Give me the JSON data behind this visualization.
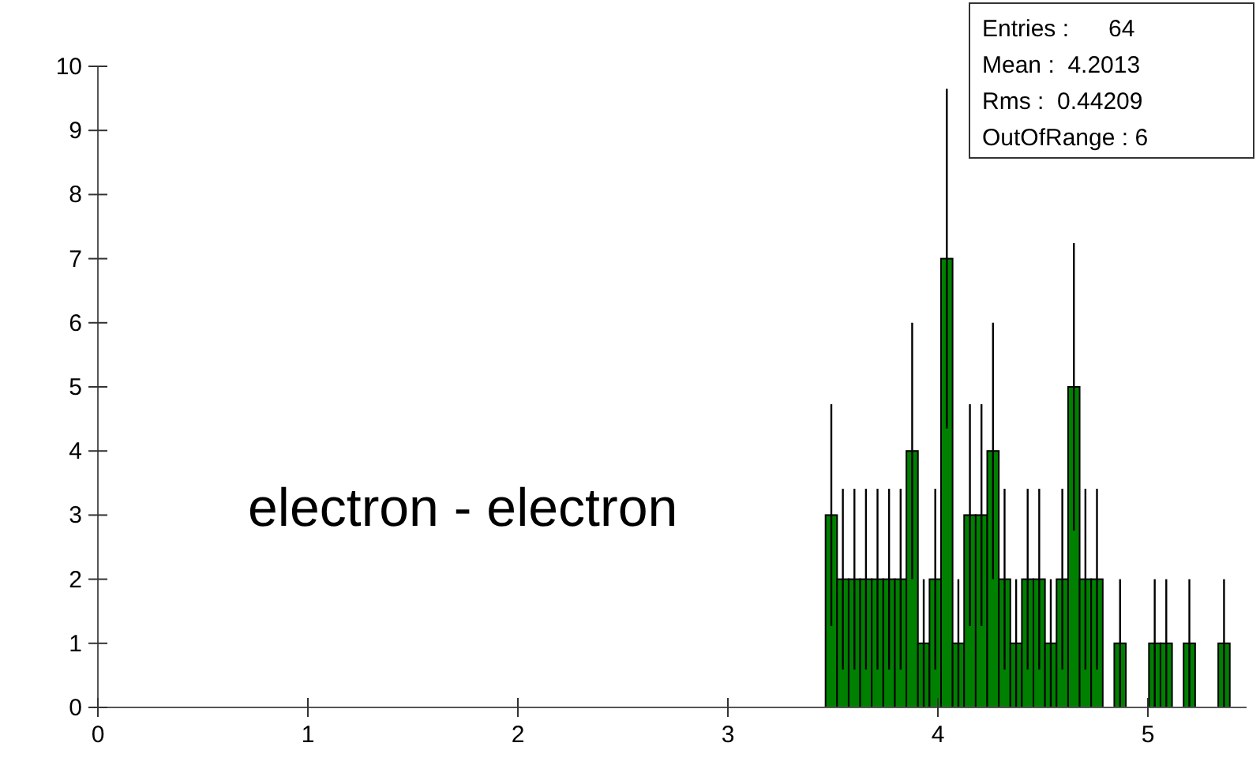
{
  "chart_data": {
    "type": "histogram",
    "title": "electron - electron",
    "bins": [
      3.465,
      3.52,
      3.575,
      3.63,
      3.685,
      3.74,
      3.795,
      3.85,
      3.905,
      3.96,
      4.015,
      4.07,
      4.125,
      4.18,
      4.235,
      4.29,
      4.345,
      4.4,
      4.455,
      4.51,
      4.565,
      4.62,
      4.675,
      4.73,
      4.785,
      4.84,
      4.895,
      4.95,
      5.005,
      5.06,
      5.115,
      5.17,
      5.225,
      5.28,
      5.335,
      5.39
    ],
    "values": [
      3,
      2,
      2,
      2,
      2,
      2,
      2,
      4,
      1,
      2,
      7,
      1,
      3,
      3,
      4,
      2,
      1,
      2,
      2,
      1,
      2,
      5,
      2,
      2,
      0,
      1,
      0,
      0,
      1,
      1,
      0,
      1,
      0,
      0,
      1
    ],
    "errors": [
      1.73,
      1.41,
      1.41,
      1.41,
      1.41,
      1.41,
      1.41,
      2,
      1,
      1.41,
      2.65,
      1,
      1.73,
      1.73,
      2,
      1.41,
      1,
      1.41,
      1.41,
      1,
      1.41,
      2.24,
      1.41,
      1.41,
      null,
      1,
      null,
      null,
      1,
      1,
      null,
      1,
      null,
      null,
      1
    ],
    "color": "#008000",
    "xlim": [
      0,
      5.47
    ],
    "xticks": [
      0,
      1,
      2,
      3,
      4,
      5
    ],
    "ylim": [
      0,
      10
    ],
    "yticks": [
      0,
      1,
      2,
      3,
      4,
      5,
      6,
      7,
      8,
      9,
      10
    ],
    "annotations": [
      "Entries :      64",
      "Mean :  4.2013",
      "Rms :  0.44209",
      "OutOfRange : 6"
    ]
  }
}
